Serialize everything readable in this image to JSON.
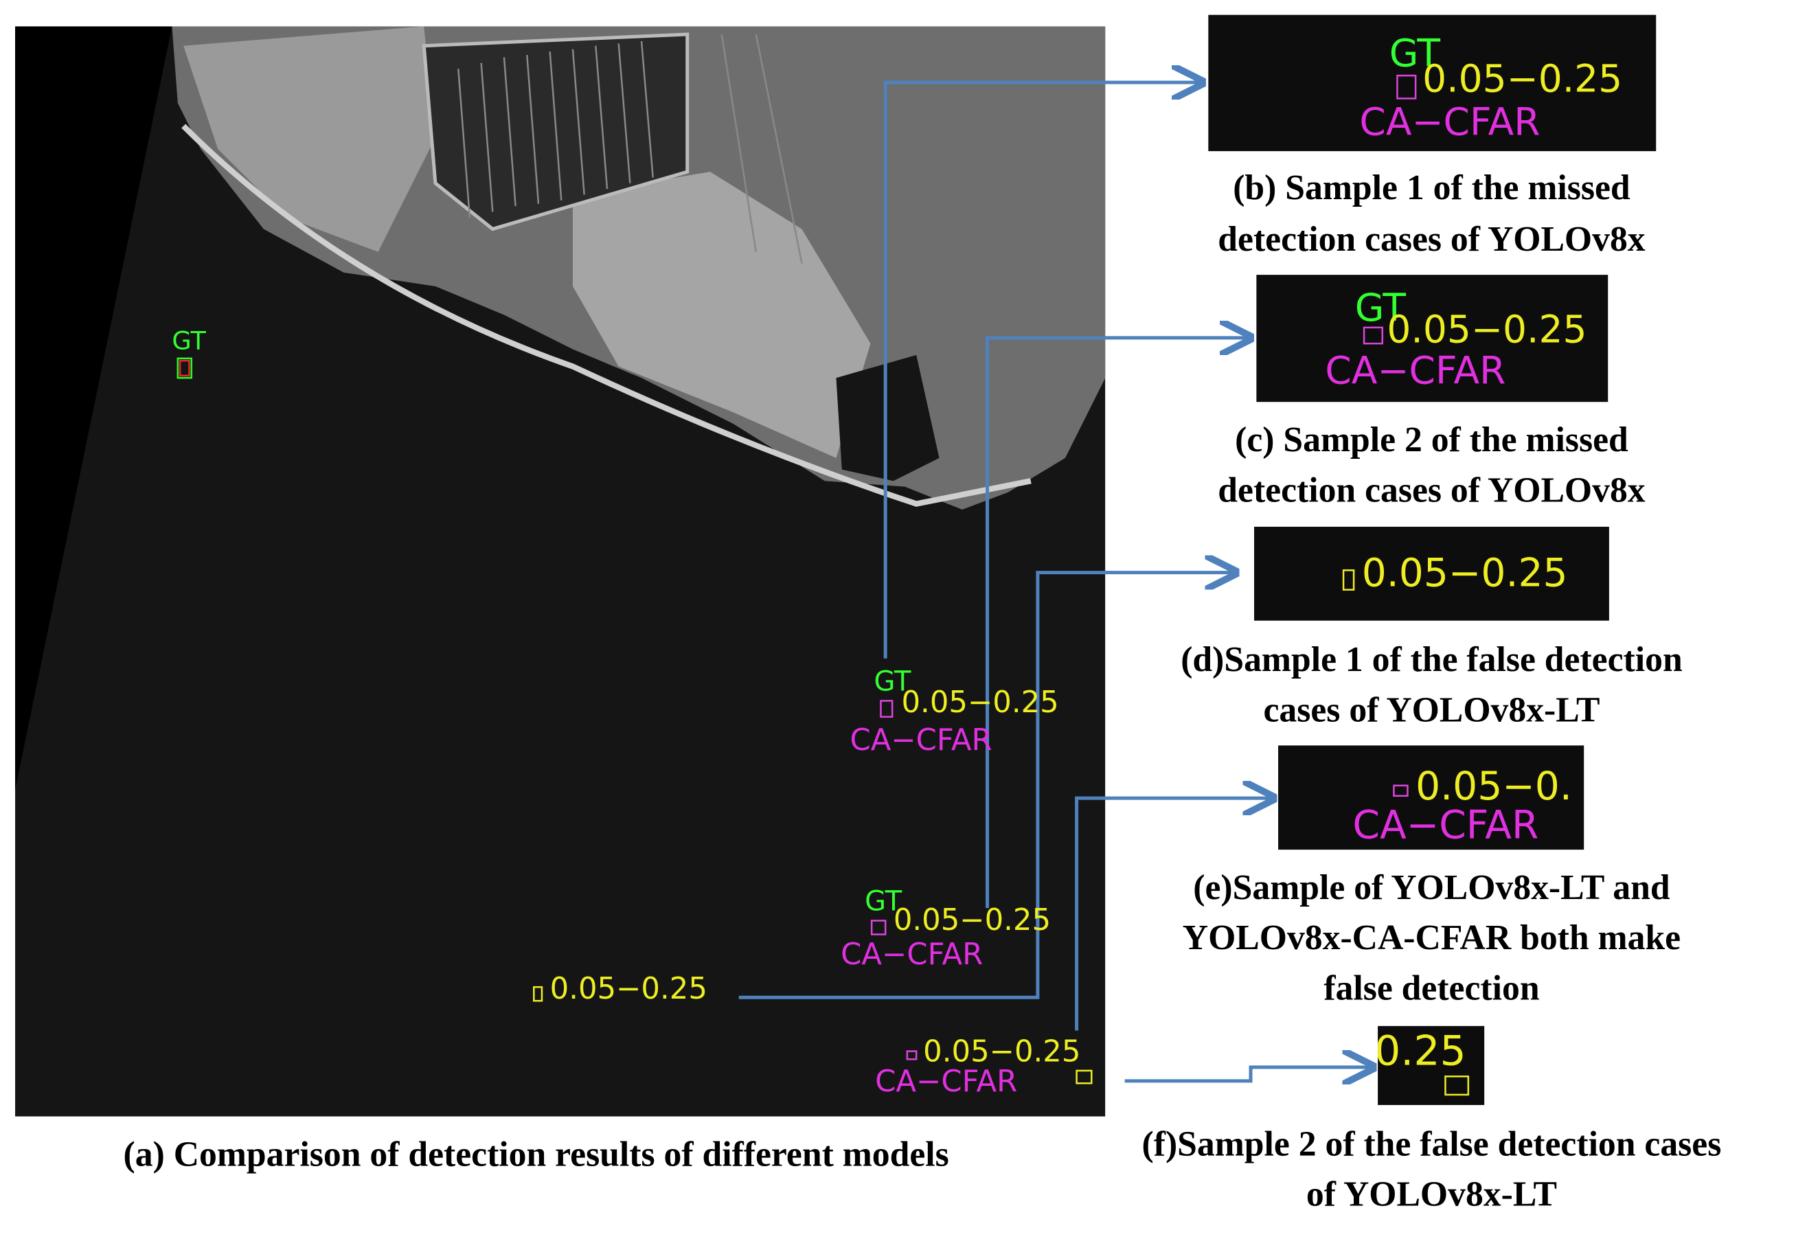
{
  "main": {
    "caption": "(a) Comparison of detection results of different models",
    "labels": [
      "GT",
      "GT",
      "0.05−0.25",
      "CA−CFAR",
      "GT",
      "0.05−0.25",
      "CA−CFAR",
      "0.05−0.25",
      "0.05−0.25",
      "CA−CFAR"
    ]
  },
  "insets": [
    {
      "labels": [
        "GT",
        "0.05−0.25",
        "CA−CFAR"
      ],
      "caption": [
        "(b) Sample 1 of the missed",
        "detection cases of YOLOv8x"
      ]
    },
    {
      "labels": [
        "GT",
        "0.05−0.25",
        "CA−CFAR"
      ],
      "caption": [
        "(c) Sample 2 of the missed",
        "detection cases of YOLOv8x"
      ]
    },
    {
      "labels": [
        "0.05−0.25"
      ],
      "caption": [
        "(d)Sample 1 of the false detection",
        "cases of YOLOv8x-LT"
      ]
    },
    {
      "labels": [
        "0.05−0.",
        "CA−CFAR"
      ],
      "caption": [
        "(e)Sample  of YOLOv8x-LT and",
        "YOLOv8x-CA-CFAR both make",
        "false detection"
      ]
    },
    {
      "labels": [
        "0.25"
      ],
      "caption": [
        "(f)Sample 2 of the false detection cases",
        "of YOLOv8x-LT"
      ]
    }
  ]
}
